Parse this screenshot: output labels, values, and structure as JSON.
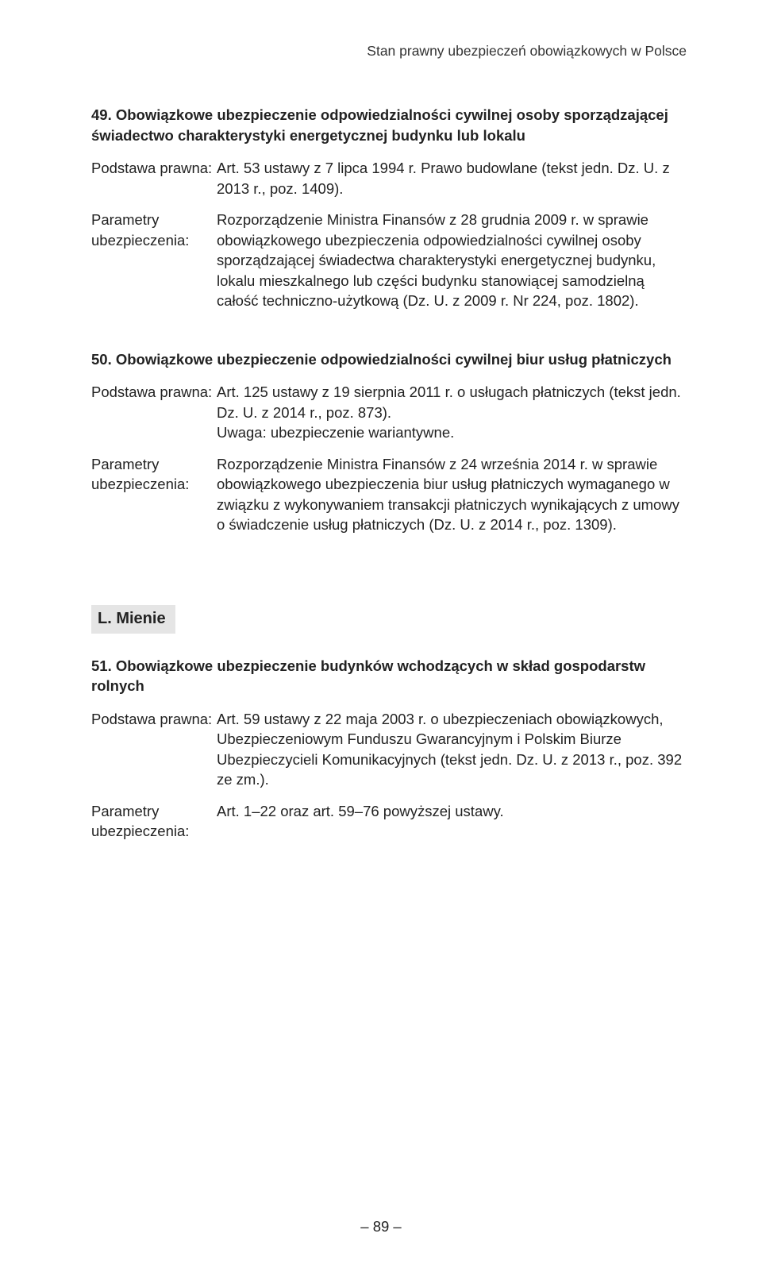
{
  "running_head": "Stan prawny ubezpieczeń obowiązkowych w Polsce",
  "sections": {
    "s49": {
      "title": "49. Obowiązkowe ubezpieczenie odpowiedzialności cywilnej osoby sporządzającej świadectwo charakterystyki energetycznej budynku lub lokalu",
      "podstawa_label": "Podstawa prawna:",
      "podstawa_value": "Art. 53 ustawy z 7 lipca 1994 r. Prawo budowlane (tekst jedn. Dz. U. z 2013 r., poz. 1409).",
      "parametry_label": "Parametry ubezpieczenia:",
      "parametry_value": "Rozporządzenie Ministra Finansów z 28 grudnia 2009 r. w sprawie obowiązkowego ubezpieczenia odpowiedzialności cywilnej osoby sporządzającej świadectwa charakterystyki energetycznej budynku, lokalu mieszkalnego lub części budynku stanowiącej samodzielną całość techniczno-użytkową (Dz. U. z 2009 r. Nr 224, poz. 1802)."
    },
    "s50": {
      "title": "50. Obowiązkowe ubezpieczenie odpowiedzialności cywilnej biur usług płatniczych",
      "podstawa_label": "Podstawa prawna:",
      "podstawa_value_l1": "Art. 125 ustawy z 19 sierpnia 2011 r. o usługach płatniczych (tekst jedn. Dz. U. z 2014 r., poz. 873).",
      "podstawa_value_l2": "Uwaga: ubezpieczenie wariantywne.",
      "parametry_label": "Parametry ubezpieczenia:",
      "parametry_value": "Rozporządzenie Ministra Finansów z 24 września 2014 r. w sprawie obowiązkowego ubezpieczenia biur usług płatniczych wymaganego w związku z wykonywaniem transakcji płatniczych wynikających z umowy o świadczenie usług płatniczych (Dz. U. z 2014 r., poz. 1309)."
    },
    "subsection_label": "L. Mienie",
    "s51": {
      "title": "51. Obowiązkowe ubezpieczenie budynków wchodzących w skład gospodarstw rolnych",
      "podstawa_label": "Podstawa prawna:",
      "podstawa_value": "Art. 59 ustawy z 22 maja 2003 r. o ubezpieczeniach obowiązkowych, Ubezpieczeniowym Funduszu Gwarancyjnym i Polskim Biurze Ubezpieczycieli Komunikacyjnych (tekst jedn. Dz. U. z 2013 r., poz. 392 ze zm.).",
      "parametry_label": "Parametry ubezpieczenia:",
      "parametry_value": "Art. 1–22 oraz art. 59–76 powyższej ustawy."
    }
  },
  "page_number": "– 89 –"
}
